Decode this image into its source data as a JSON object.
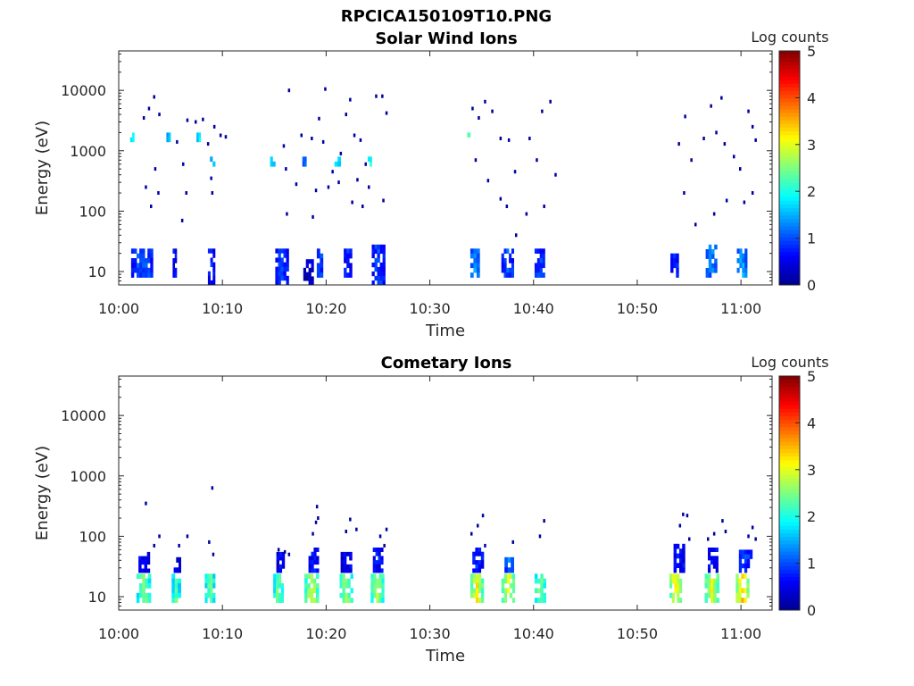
{
  "figure_title": "RPCICA150109T10.PNG",
  "colorbar_label": "Log counts",
  "colorbar_ticks": [
    "0",
    "1",
    "2",
    "3",
    "4",
    "5"
  ],
  "colormap": [
    "#00008f",
    "#0000ff",
    "#007fff",
    "#00ffff",
    "#7fff7f",
    "#ffff00",
    "#ff7f00",
    "#ff0000",
    "#7f0000"
  ],
  "x_tick_labels": [
    "10:00",
    "10:10",
    "10:20",
    "10:30",
    "10:40",
    "10:50",
    "11:00"
  ],
  "y_tick_labels": [
    "10",
    "100",
    "1000",
    "10000"
  ],
  "chart_data": [
    {
      "type": "heatmap",
      "title": "Solar Wind Ions",
      "xlabel": "Time",
      "ylabel": "Energy (eV)",
      "xlim": [
        "10:00",
        "11:03"
      ],
      "ylim": [
        6,
        45000
      ],
      "y_scale": "log",
      "color_scale": "Log counts",
      "clim": [
        0,
        5
      ],
      "blocks": [
        {
          "t0": 1.2,
          "t1": 3.3,
          "e0": 8,
          "e1": 24,
          "v": 0.9
        },
        {
          "t0": 5.2,
          "t1": 5.6,
          "e0": 8,
          "e1": 24,
          "v": 0.6
        },
        {
          "t0": 8.6,
          "t1": 9.3,
          "e0": 6,
          "e1": 24,
          "v": 0.7
        },
        {
          "t0": 15.1,
          "t1": 16.4,
          "e0": 6,
          "e1": 24,
          "v": 0.8
        },
        {
          "t0": 17.8,
          "t1": 18.8,
          "e0": 6,
          "e1": 16,
          "v": 0.3
        },
        {
          "t0": 19.1,
          "t1": 19.7,
          "e0": 8,
          "e1": 24,
          "v": 0.9
        },
        {
          "t0": 21.7,
          "t1": 22.5,
          "e0": 8,
          "e1": 24,
          "v": 0.7
        },
        {
          "t0": 24.4,
          "t1": 25.7,
          "e0": 6,
          "e1": 28,
          "v": 0.8
        },
        {
          "t0": 33.9,
          "t1": 34.8,
          "e0": 8,
          "e1": 24,
          "v": 1.2
        },
        {
          "t0": 36.9,
          "t1": 38.1,
          "e0": 8,
          "e1": 24,
          "v": 0.9
        },
        {
          "t0": 40.1,
          "t1": 41.1,
          "e0": 8,
          "e1": 24,
          "v": 0.8
        },
        {
          "t0": 53.2,
          "t1": 54.0,
          "e0": 8,
          "e1": 24,
          "v": 0.8
        },
        {
          "t0": 56.6,
          "t1": 57.7,
          "e0": 8,
          "e1": 28,
          "v": 1.1
        },
        {
          "t0": 59.6,
          "t1": 60.6,
          "e0": 8,
          "e1": 24,
          "v": 1.3
        },
        {
          "t0": 1.1,
          "t1": 1.5,
          "e0": 1400,
          "e1": 2000,
          "v": 1.8
        },
        {
          "t0": 4.6,
          "t1": 5.0,
          "e0": 1400,
          "e1": 2000,
          "v": 1.6
        },
        {
          "t0": 7.5,
          "t1": 7.9,
          "e0": 1400,
          "e1": 2000,
          "v": 1.8
        },
        {
          "t0": 8.8,
          "t1": 9.3,
          "e0": 550,
          "e1": 800,
          "v": 1.6
        },
        {
          "t0": 14.6,
          "t1": 15.1,
          "e0": 550,
          "e1": 800,
          "v": 1.6
        },
        {
          "t0": 17.7,
          "t1": 18.1,
          "e0": 550,
          "e1": 800,
          "v": 1.2
        },
        {
          "t0": 20.8,
          "t1": 21.4,
          "e0": 550,
          "e1": 800,
          "v": 1.6
        },
        {
          "t0": 24.0,
          "t1": 24.4,
          "e0": 550,
          "e1": 800,
          "v": 1.9
        },
        {
          "t0": 33.6,
          "t1": 33.9,
          "e0": 1400,
          "e1": 2000,
          "v": 1.8
        }
      ],
      "points": [
        [
          2.4,
          3500
        ],
        [
          2.9,
          5000
        ],
        [
          3.4,
          7800
        ],
        [
          3.9,
          4000
        ],
        [
          2.6,
          250
        ],
        [
          3.1,
          120
        ],
        [
          3.8,
          200
        ],
        [
          3.5,
          500
        ],
        [
          5.6,
          1400
        ],
        [
          6.2,
          600
        ],
        [
          6.6,
          3200
        ],
        [
          7.4,
          3000
        ],
        [
          8.1,
          3300
        ],
        [
          8.6,
          1300
        ],
        [
          9.2,
          2500
        ],
        [
          9.8,
          1800
        ],
        [
          6.5,
          200
        ],
        [
          6.1,
          70
        ],
        [
          9.0,
          200
        ],
        [
          10.3,
          1700
        ],
        [
          15.9,
          1200
        ],
        [
          16.1,
          500
        ],
        [
          16.4,
          10000
        ],
        [
          17.1,
          280
        ],
        [
          17.6,
          1800
        ],
        [
          18.6,
          1600
        ],
        [
          19.3,
          3400
        ],
        [
          19.7,
          1400
        ],
        [
          19.9,
          10500
        ],
        [
          20.6,
          450
        ],
        [
          21.4,
          900
        ],
        [
          21.9,
          4000
        ],
        [
          22.3,
          7000
        ],
        [
          22.7,
          1800
        ],
        [
          23.3,
          1500
        ],
        [
          23.8,
          600
        ],
        [
          24.1,
          250
        ],
        [
          24.8,
          8000
        ],
        [
          25.4,
          8000
        ],
        [
          25.8,
          4200
        ],
        [
          16.2,
          90
        ],
        [
          18.7,
          80
        ],
        [
          20.2,
          250
        ],
        [
          21.2,
          300
        ],
        [
          22.5,
          140
        ],
        [
          23.5,
          120
        ],
        [
          25.5,
          150
        ],
        [
          34.1,
          5000
        ],
        [
          34.7,
          3500
        ],
        [
          35.3,
          6500
        ],
        [
          36.0,
          4500
        ],
        [
          36.8,
          1600
        ],
        [
          37.6,
          1500
        ],
        [
          34.4,
          700
        ],
        [
          35.6,
          320
        ],
        [
          36.8,
          160
        ],
        [
          37.4,
          120
        ],
        [
          38.2,
          450
        ],
        [
          39.6,
          1600
        ],
        [
          40.3,
          700
        ],
        [
          40.8,
          4500
        ],
        [
          41.6,
          6500
        ],
        [
          42.1,
          400
        ],
        [
          38.3,
          40
        ],
        [
          39.3,
          90
        ],
        [
          54.0,
          1300
        ],
        [
          54.6,
          3700
        ],
        [
          55.2,
          700
        ],
        [
          56.4,
          1600
        ],
        [
          57.1,
          5500
        ],
        [
          57.6,
          2000
        ],
        [
          58.1,
          7500
        ],
        [
          58.4,
          1300
        ],
        [
          59.3,
          800
        ],
        [
          59.9,
          500
        ],
        [
          60.7,
          4500
        ],
        [
          61.1,
          2500
        ],
        [
          61.4,
          1500
        ],
        [
          54.5,
          200
        ],
        [
          55.6,
          60
        ],
        [
          57.4,
          90
        ],
        [
          58.6,
          150
        ],
        [
          60.3,
          140
        ],
        [
          61.1,
          200
        ],
        [
          8.9,
          350
        ],
        [
          19.0,
          220
        ],
        [
          23.0,
          330
        ],
        [
          41.0,
          120
        ]
      ]
    },
    {
      "type": "heatmap",
      "title": "Cometary Ions",
      "xlabel": "Time",
      "ylabel": "Energy (eV)",
      "xlim": [
        "10:00",
        "11:03"
      ],
      "ylim": [
        6,
        45000
      ],
      "y_scale": "log",
      "color_scale": "Log counts",
      "clim": [
        0,
        5
      ],
      "blocks": [
        {
          "t0": 1.7,
          "t1": 3.1,
          "e0": 8,
          "e1": 24,
          "v": 2.2
        },
        {
          "t0": 5.1,
          "t1": 6.0,
          "e0": 8,
          "e1": 24,
          "v": 2.0
        },
        {
          "t0": 8.3,
          "t1": 9.3,
          "e0": 8,
          "e1": 24,
          "v": 2.1
        },
        {
          "t0": 14.9,
          "t1": 15.9,
          "e0": 8,
          "e1": 24,
          "v": 2.2
        },
        {
          "t0": 17.9,
          "t1": 19.3,
          "e0": 8,
          "e1": 24,
          "v": 2.5
        },
        {
          "t0": 21.3,
          "t1": 22.6,
          "e0": 8,
          "e1": 24,
          "v": 2.3
        },
        {
          "t0": 24.3,
          "t1": 25.6,
          "e0": 8,
          "e1": 24,
          "v": 2.4
        },
        {
          "t0": 33.9,
          "t1": 35.2,
          "e0": 8,
          "e1": 24,
          "v": 2.7
        },
        {
          "t0": 36.9,
          "t1": 38.2,
          "e0": 8,
          "e1": 24,
          "v": 2.6
        },
        {
          "t0": 40.1,
          "t1": 41.2,
          "e0": 8,
          "e1": 24,
          "v": 2.2
        },
        {
          "t0": 53.1,
          "t1": 54.3,
          "e0": 8,
          "e1": 24,
          "v": 2.8
        },
        {
          "t0": 56.5,
          "t1": 57.9,
          "e0": 8,
          "e1": 24,
          "v": 2.6
        },
        {
          "t0": 59.5,
          "t1": 60.8,
          "e0": 8,
          "e1": 24,
          "v": 3.0
        },
        {
          "t0": 1.9,
          "t1": 3.0,
          "e0": 25,
          "e1": 55,
          "v": 0.6
        },
        {
          "t0": 5.3,
          "t1": 6.0,
          "e0": 25,
          "e1": 45,
          "v": 0.4
        },
        {
          "t0": 15.2,
          "t1": 16.0,
          "e0": 25,
          "e1": 55,
          "v": 0.5
        },
        {
          "t0": 18.3,
          "t1": 19.3,
          "e0": 25,
          "e1": 65,
          "v": 0.6
        },
        {
          "t0": 21.4,
          "t1": 22.5,
          "e0": 25,
          "e1": 55,
          "v": 0.5
        },
        {
          "t0": 24.5,
          "t1": 25.5,
          "e0": 25,
          "e1": 65,
          "v": 0.6
        },
        {
          "t0": 34.1,
          "t1": 35.2,
          "e0": 25,
          "e1": 65,
          "v": 0.7
        },
        {
          "t0": 37.2,
          "t1": 38.1,
          "e0": 25,
          "e1": 45,
          "v": 1.0
        },
        {
          "t0": 53.5,
          "t1": 54.6,
          "e0": 25,
          "e1": 75,
          "v": 0.6
        },
        {
          "t0": 56.8,
          "t1": 57.8,
          "e0": 25,
          "e1": 65,
          "v": 0.6
        },
        {
          "t0": 59.8,
          "t1": 61.1,
          "e0": 25,
          "e1": 60,
          "v": 0.8
        }
      ],
      "points": [
        [
          2.6,
          350
        ],
        [
          3.4,
          70
        ],
        [
          3.9,
          100
        ],
        [
          5.8,
          70
        ],
        [
          6.6,
          100
        ],
        [
          8.7,
          80
        ],
        [
          9.0,
          630
        ],
        [
          9.1,
          50
        ],
        [
          15.4,
          60
        ],
        [
          16.0,
          55
        ],
        [
          16.4,
          50
        ],
        [
          18.7,
          110
        ],
        [
          19.0,
          170
        ],
        [
          19.2,
          200
        ],
        [
          19.1,
          310
        ],
        [
          21.9,
          120
        ],
        [
          22.3,
          190
        ],
        [
          22.9,
          130
        ],
        [
          25.2,
          100
        ],
        [
          25.6,
          70
        ],
        [
          25.8,
          130
        ],
        [
          34.0,
          110
        ],
        [
          34.6,
          150
        ],
        [
          35.1,
          220
        ],
        [
          35.3,
          70
        ],
        [
          38.0,
          80
        ],
        [
          40.6,
          100
        ],
        [
          41.0,
          180
        ],
        [
          54.1,
          150
        ],
        [
          54.4,
          230
        ],
        [
          54.8,
          220
        ],
        [
          55.0,
          90
        ],
        [
          56.8,
          90
        ],
        [
          57.4,
          110
        ],
        [
          58.2,
          180
        ],
        [
          58.5,
          120
        ],
        [
          60.7,
          100
        ],
        [
          61.1,
          140
        ],
        [
          61.4,
          90
        ]
      ]
    }
  ]
}
